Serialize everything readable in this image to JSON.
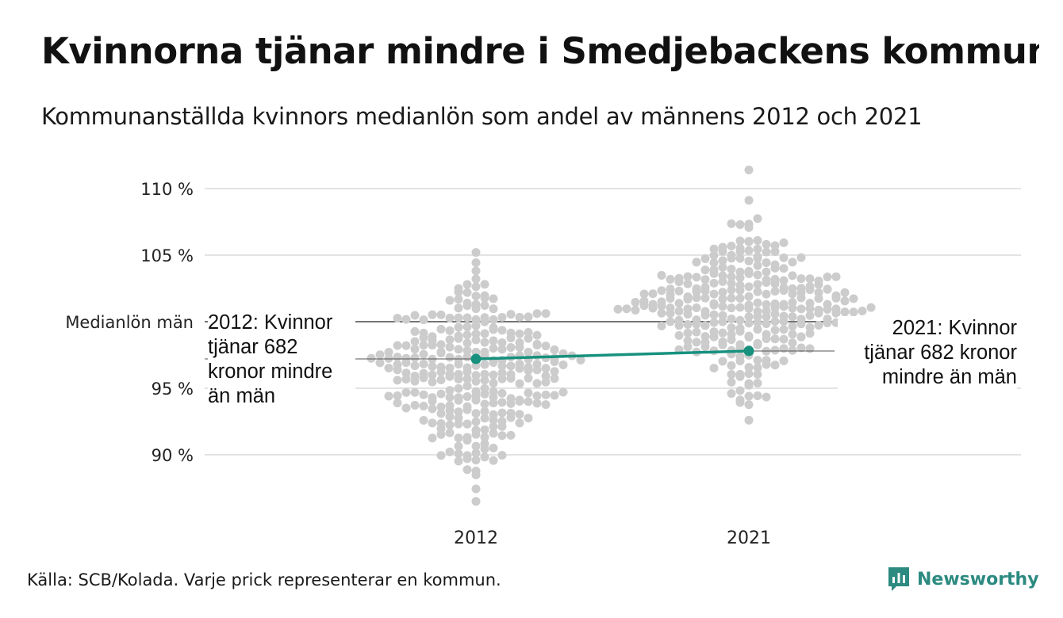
{
  "title": "Kvinnorna tjänar mindre i Smedjebackens kommun",
  "subtitle": "Kommunanställda kvinnors medianlön som andel av männens 2012 och 2021",
  "source": "Källa: SCB/Kolada. Varje prick representerar en kommun.",
  "logo": {
    "name": "Newsworthy",
    "icon": "newsworthy-logo-icon",
    "color": "#2c8a80"
  },
  "colors": {
    "dots": "#cccccc",
    "highlight": "#17917e",
    "grid": "#e3e3e3",
    "reference": "#222222"
  },
  "annotations": {
    "left": "2012: Kvinnor tjänar 682 kronor mindre än män",
    "right": "2021: Kvinnor tjänar 682 kronor mindre än män"
  },
  "chart_data": {
    "type": "scatter",
    "categories": [
      "2012",
      "2021"
    ],
    "y_ticks": [
      {
        "value": 90,
        "label": "90 %"
      },
      {
        "value": 95,
        "label": "95 %"
      },
      {
        "value": 105,
        "label": "105 %"
      },
      {
        "value": 110,
        "label": "110 %"
      }
    ],
    "ylim": [
      86,
      112
    ],
    "reference_line": {
      "label": "Medianlön män",
      "value": 100
    },
    "grid": true,
    "highlight_series": [
      {
        "category": "2012",
        "value": 97.2
      },
      {
        "category": "2021",
        "value": 97.8
      }
    ],
    "distributions": [
      {
        "category": "2012",
        "median": 96.0,
        "min": 86.5,
        "max": 105.2,
        "count": 290
      },
      {
        "category": "2021",
        "median": 101.0,
        "min": 92.6,
        "max": 111.4,
        "count": 290
      }
    ]
  }
}
